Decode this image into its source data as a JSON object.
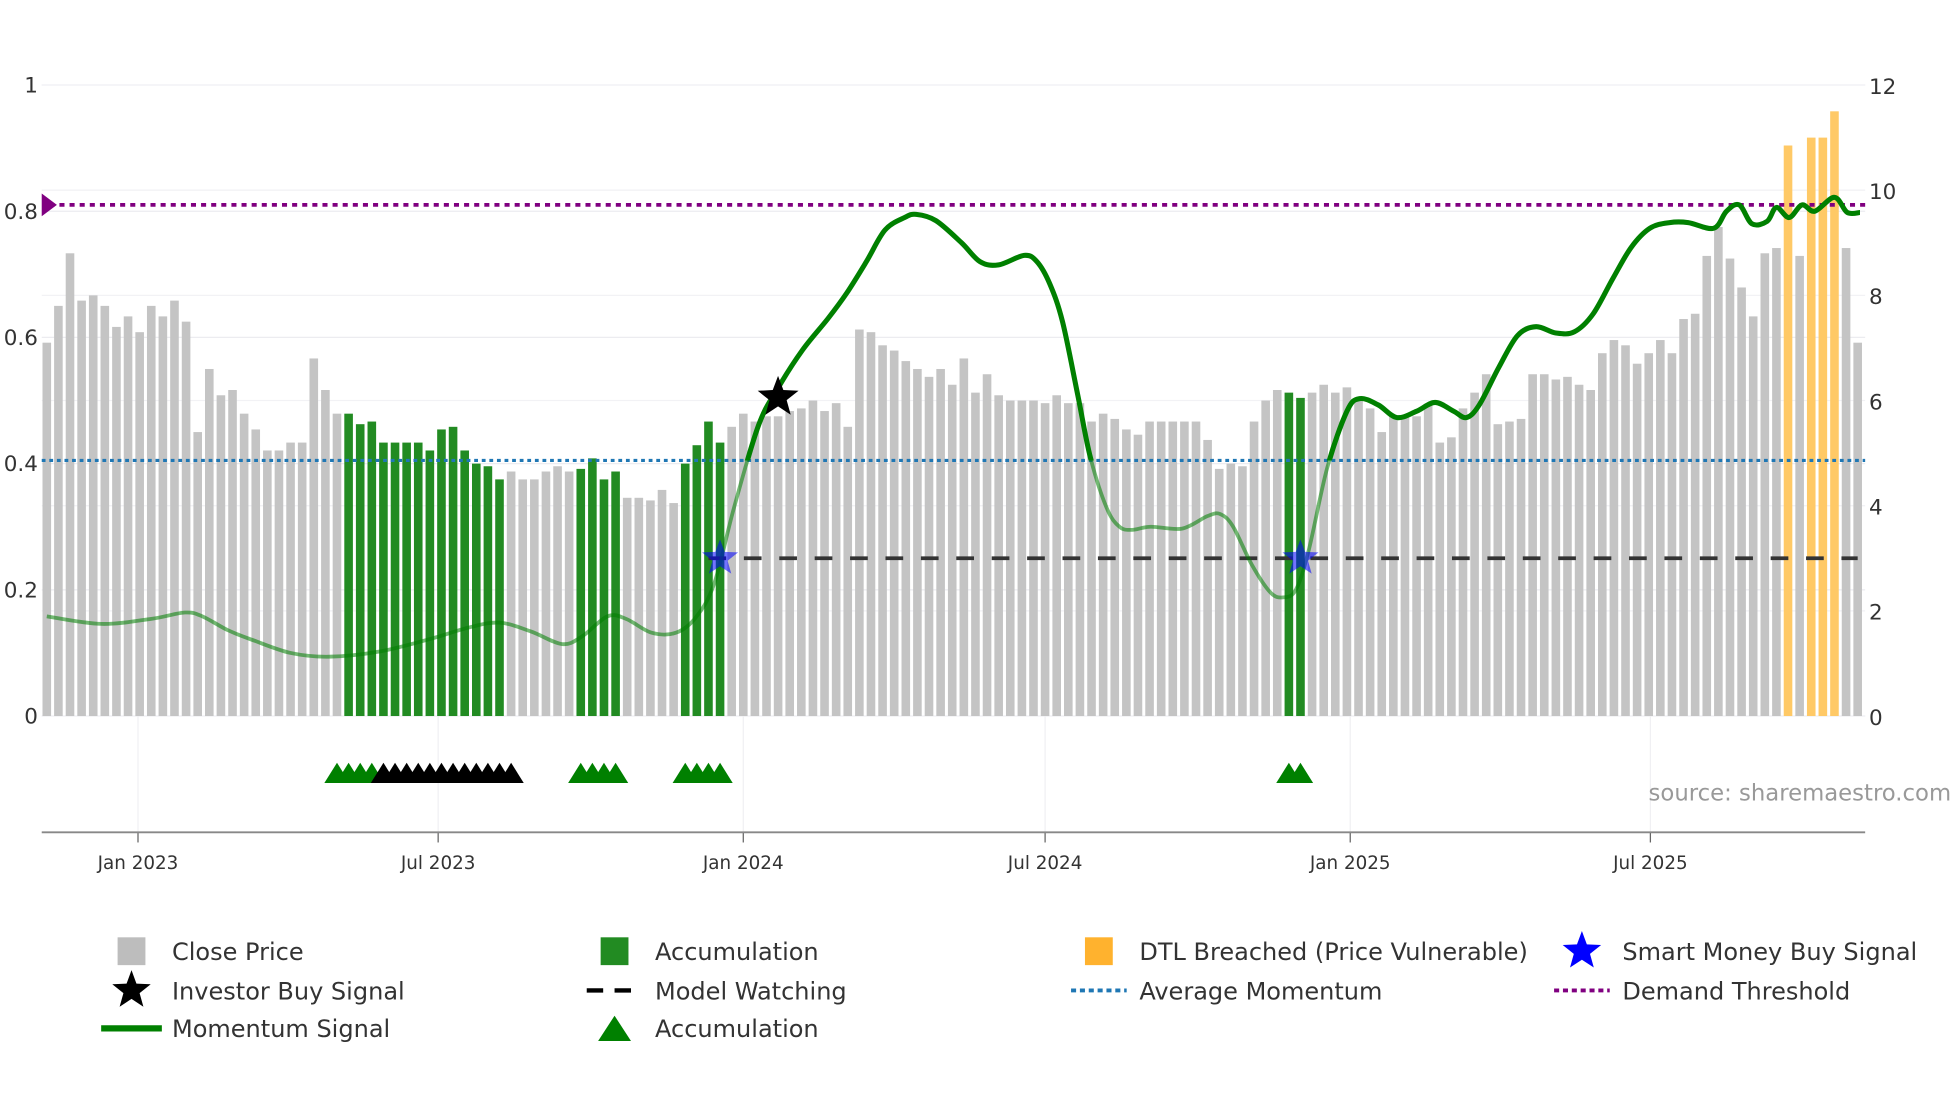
{
  "chart_data": {
    "type": "bar",
    "x_start_date": "2022-11-07",
    "x_frequency": "weekly",
    "source": "source: sharemaestro.com",
    "left_axis": {
      "ylim": [
        0,
        1
      ],
      "ticks": [
        0,
        0.2,
        0.4,
        0.6,
        0.8,
        1
      ],
      "tick_labels": [
        "0",
        "0.2",
        "0.4",
        "0.6",
        "0.8",
        "1"
      ]
    },
    "right_axis": {
      "ylim": [
        0,
        12
      ],
      "ticks": [
        0,
        2,
        4,
        6,
        8,
        10,
        12
      ],
      "tick_labels": [
        "0",
        "2",
        "4",
        "6",
        "8",
        "10",
        "12"
      ]
    },
    "x_ticks": [
      {
        "date": "2023-01-01",
        "label": "Jan 2023"
      },
      {
        "date": "2023-07-01",
        "label": "Jul 2023"
      },
      {
        "date": "2024-01-01",
        "label": "Jan 2024"
      },
      {
        "date": "2024-07-01",
        "label": "Jul 2024"
      },
      {
        "date": "2025-01-01",
        "label": "Jan 2025"
      },
      {
        "date": "2025-07-01",
        "label": "Jul 2025"
      }
    ],
    "close_price": [
      7.1,
      7.8,
      8.8,
      7.9,
      8.0,
      7.8,
      7.4,
      7.6,
      7.3,
      7.8,
      7.6,
      7.9,
      7.5,
      5.4,
      6.6,
      6.1,
      6.2,
      5.75,
      5.45,
      5.05,
      5.05,
      5.2,
      5.2,
      6.8,
      6.2,
      5.75,
      5.75,
      5.55,
      5.6,
      5.2,
      5.2,
      5.2,
      5.2,
      5.05,
      5.45,
      5.5,
      5.05,
      4.8,
      4.75,
      4.5,
      4.65,
      4.5,
      4.5,
      4.65,
      4.75,
      4.65,
      4.7,
      4.9,
      4.5,
      4.65,
      4.15,
      4.15,
      4.1,
      4.3,
      4.05,
      4.8,
      5.15,
      5.6,
      5.2,
      5.5,
      5.75,
      5.6,
      5.7,
      5.7,
      5.8,
      5.85,
      6.0,
      5.8,
      5.95,
      5.5,
      7.35,
      7.3,
      7.05,
      6.95,
      6.75,
      6.6,
      6.45,
      6.6,
      6.3,
      6.8,
      6.15,
      6.5,
      6.1,
      6.0,
      6.0,
      6.0,
      5.95,
      6.1,
      5.95,
      5.95,
      5.6,
      5.75,
      5.65,
      5.45,
      5.35,
      5.6,
      5.6,
      5.6,
      5.6,
      5.6,
      5.25,
      4.7,
      4.8,
      4.75,
      5.6,
      6.0,
      6.2,
      6.15,
      6.05,
      6.15,
      6.3,
      6.15,
      6.25,
      6.0,
      5.85,
      5.4,
      5.7,
      5.7,
      5.7,
      5.9,
      5.2,
      5.3,
      5.85,
      6.15,
      6.5,
      5.55,
      5.6,
      5.65,
      6.5,
      6.5,
      6.4,
      6.45,
      6.3,
      6.2,
      6.9,
      7.15,
      7.05,
      6.7,
      6.9,
      7.15,
      6.9,
      7.55,
      7.65,
      8.75,
      9.3,
      8.7,
      8.15,
      7.6,
      8.8,
      8.9,
      10.85,
      8.75,
      11.0,
      11.0,
      11.5,
      8.9,
      7.1
    ],
    "accumulation_bar_indices": [
      26,
      27,
      28,
      29,
      30,
      31,
      32,
      33,
      34,
      35,
      36,
      37,
      38,
      39,
      46,
      47,
      48,
      49,
      55,
      56,
      57,
      58,
      107,
      108
    ],
    "dtl_breached_bar_indices": [
      150,
      152,
      153,
      154
    ],
    "momentum_signal": [
      [
        0,
        0.158
      ],
      [
        4.7,
        0.146
      ],
      [
        9.0,
        0.154
      ],
      [
        11.9,
        0.164
      ],
      [
        13.4,
        0.158
      ],
      [
        15.6,
        0.136
      ],
      [
        17.8,
        0.12
      ],
      [
        21.0,
        0.1
      ],
      [
        24.3,
        0.094
      ],
      [
        28.6,
        0.102
      ],
      [
        33.0,
        0.122
      ],
      [
        36.3,
        0.14
      ],
      [
        39.0,
        0.148
      ],
      [
        41.7,
        0.134
      ],
      [
        44.4,
        0.114
      ],
      [
        46.1,
        0.126
      ],
      [
        48.3,
        0.158
      ],
      [
        49.9,
        0.154
      ],
      [
        52.1,
        0.132
      ],
      [
        54.2,
        0.132
      ],
      [
        55.9,
        0.156
      ],
      [
        57.5,
        0.21
      ],
      [
        59.2,
        0.33
      ],
      [
        61.3,
        0.46
      ],
      [
        63.0,
        0.52
      ],
      [
        65.1,
        0.58
      ],
      [
        67.3,
        0.63
      ],
      [
        68.9,
        0.67
      ],
      [
        70.6,
        0.72
      ],
      [
        72.2,
        0.77
      ],
      [
        73.9,
        0.79
      ],
      [
        74.9,
        0.795
      ],
      [
        76.6,
        0.785
      ],
      [
        78.8,
        0.75
      ],
      [
        80.4,
        0.72
      ],
      [
        82.0,
        0.715
      ],
      [
        84.2,
        0.73
      ],
      [
        85.3,
        0.72
      ],
      [
        86.4,
        0.685
      ],
      [
        87.5,
        0.625
      ],
      [
        88.8,
        0.51
      ],
      [
        89.9,
        0.41
      ],
      [
        91.3,
        0.33
      ],
      [
        92.4,
        0.3
      ],
      [
        93.5,
        0.295
      ],
      [
        95.1,
        0.3
      ],
      [
        97.8,
        0.297
      ],
      [
        100.0,
        0.317
      ],
      [
        101.1,
        0.32
      ],
      [
        102.2,
        0.3
      ],
      [
        103.8,
        0.24
      ],
      [
        105.4,
        0.196
      ],
      [
        106.5,
        0.188
      ],
      [
        107.6,
        0.2
      ],
      [
        108.7,
        0.262
      ],
      [
        110.3,
        0.393
      ],
      [
        112.0,
        0.483
      ],
      [
        113.1,
        0.503
      ],
      [
        114.7,
        0.493
      ],
      [
        116.3,
        0.473
      ],
      [
        118.0,
        0.483
      ],
      [
        119.6,
        0.497
      ],
      [
        121.2,
        0.483
      ],
      [
        122.3,
        0.473
      ],
      [
        123.4,
        0.493
      ],
      [
        125.1,
        0.553
      ],
      [
        126.7,
        0.603
      ],
      [
        128.3,
        0.617
      ],
      [
        130.0,
        0.607
      ],
      [
        131.6,
        0.609
      ],
      [
        133.2,
        0.637
      ],
      [
        134.9,
        0.693
      ],
      [
        136.5,
        0.743
      ],
      [
        138.1,
        0.773
      ],
      [
        139.8,
        0.782
      ],
      [
        141.4,
        0.782
      ],
      [
        143.6,
        0.773
      ],
      [
        144.7,
        0.8
      ],
      [
        145.8,
        0.81
      ],
      [
        146.9,
        0.78
      ],
      [
        148.2,
        0.784
      ],
      [
        149.0,
        0.806
      ],
      [
        150.1,
        0.79
      ],
      [
        151.2,
        0.81
      ],
      [
        152.3,
        0.8
      ],
      [
        154.0,
        0.822
      ],
      [
        155.1,
        0.798
      ],
      [
        156.2,
        0.798
      ]
    ],
    "average_momentum": 0.405,
    "demand_threshold": 0.81,
    "model_watching": {
      "value": 0.25,
      "from_index": 57,
      "to_index": 156
    },
    "investor_buy_signals": [
      [
        63.0,
        0.505
      ]
    ],
    "smart_money_buy_signals": [
      [
        58,
        0.25
      ],
      [
        108,
        0.25
      ]
    ],
    "accumulation_markers": {
      "green_indices": [
        25,
        26,
        27,
        28,
        46,
        47,
        48,
        49,
        55,
        56,
        57,
        58,
        107,
        108
      ],
      "black_indices": [
        29,
        30,
        31,
        32,
        33,
        34,
        35,
        36,
        37,
        38,
        39,
        40
      ]
    },
    "colors": {
      "close": "#c4c4c4",
      "accumulation": "#228b22",
      "dtl": "#ffc966",
      "momentum": "#008000",
      "average": "#1f77b4",
      "threshold": "#800080",
      "smart_money": "#0000ff",
      "investor": "#000000"
    },
    "legend": [
      {
        "label": "Close Price",
        "symbol": "square",
        "color": "#bdbdbd"
      },
      {
        "label": "Accumulation",
        "symbol": "square",
        "color": "#228b22"
      },
      {
        "label": "DTL Breached (Price Vulnerable)",
        "symbol": "square",
        "color": "#ffb22e"
      },
      {
        "label": "Smart Money Buy Signal",
        "symbol": "star",
        "color": "#0000ff"
      },
      {
        "label": "Investor Buy Signal",
        "symbol": "star",
        "color": "#000000"
      },
      {
        "label": "Model Watching",
        "symbol": "dash",
        "color": "#000000"
      },
      {
        "label": "Average Momentum",
        "symbol": "dot",
        "color": "#1f77b4"
      },
      {
        "label": "Demand Threshold",
        "symbol": "dot",
        "color": "#800080"
      },
      {
        "label": "Momentum Signal",
        "symbol": "line",
        "color": "#008000"
      },
      {
        "label": "Accumulation",
        "symbol": "triangle",
        "color": "#008000"
      }
    ],
    "legend_placement": "bottom"
  }
}
